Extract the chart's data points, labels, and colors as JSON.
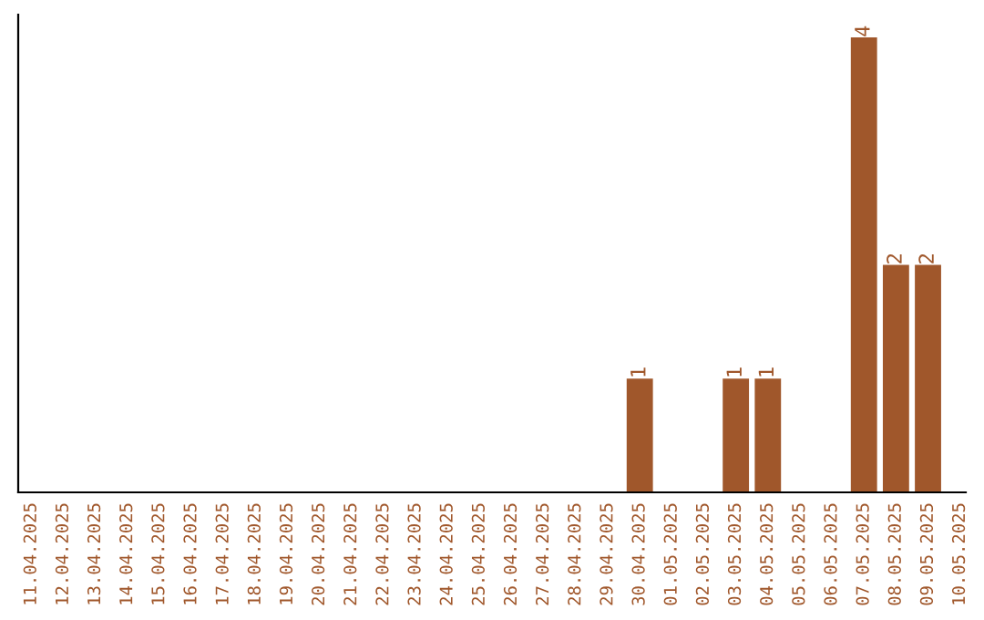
{
  "chart_data": {
    "type": "bar",
    "categories": [
      "11.04.2025",
      "12.04.2025",
      "13.04.2025",
      "14.04.2025",
      "15.04.2025",
      "16.04.2025",
      "17.04.2025",
      "18.04.2025",
      "19.04.2025",
      "20.04.2025",
      "21.04.2025",
      "22.04.2025",
      "23.04.2025",
      "24.04.2025",
      "25.04.2025",
      "26.04.2025",
      "27.04.2025",
      "28.04.2025",
      "29.04.2025",
      "30.04.2025",
      "01.05.2025",
      "02.05.2025",
      "03.05.2025",
      "04.05.2025",
      "05.05.2025",
      "06.05.2025",
      "07.05.2025",
      "08.05.2025",
      "09.05.2025",
      "10.05.2025"
    ],
    "values": [
      null,
      null,
      null,
      null,
      null,
      null,
      null,
      null,
      null,
      null,
      null,
      null,
      null,
      null,
      null,
      null,
      null,
      null,
      null,
      1,
      null,
      null,
      1,
      1,
      null,
      null,
      4,
      2,
      2,
      null
    ],
    "data_labels": true,
    "color": "#a0572b",
    "tick_labels": "x",
    "grid": false,
    "legend": false
  }
}
